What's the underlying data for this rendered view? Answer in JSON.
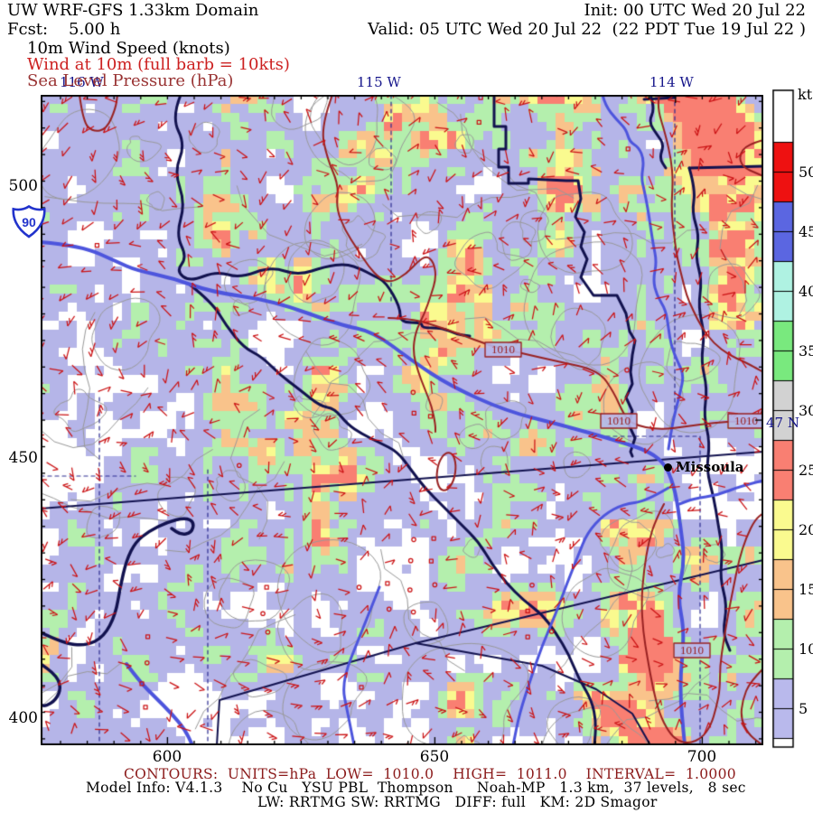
{
  "header": {
    "title_left": "UW WRF-GFS 1.33km Domain",
    "init": "Init: 00 UTC Wed 20 Jul 22",
    "fcst": "Fcst:    5.00 h",
    "valid": "Valid: 05 UTC Wed 20 Jul 22  (22 PDT Tue 19 Jul 22 )",
    "field_line1": "10m Wind Speed (knots)",
    "field_line2": "Wind at 10m (full barb = 10kts)",
    "field_line3": "Sea Level Pressure (hPa)"
  },
  "map": {
    "lon_labels": [
      "116 W",
      "115 W",
      "114 W"
    ],
    "lat_label": "47 N",
    "y_ticks": [
      "500",
      "450",
      "400"
    ],
    "x_ticks": [
      "600",
      "650",
      "700"
    ],
    "city_label": "Missoula",
    "interstate": "90",
    "contour_label": "1010"
  },
  "colorbar": {
    "unit": "kt",
    "end_color": "#ffffff",
    "levels": [
      {
        "label": "50",
        "color": "#ee1111"
      },
      {
        "label": "45",
        "color": "#5b66e1"
      },
      {
        "label": "40",
        "color": "#aff2e2"
      },
      {
        "label": "35",
        "color": "#79e97e"
      },
      {
        "label": "30",
        "color": "#d2d2d2"
      },
      {
        "label": "25",
        "color": "#f97f72"
      },
      {
        "label": "20",
        "color": "#fafa8f"
      },
      {
        "label": "15",
        "color": "#f9c38b"
      },
      {
        "label": "10",
        "color": "#b4efad"
      },
      {
        "label": "5",
        "color": "#b9b9ec"
      }
    ]
  },
  "footer": {
    "contours": "CONTOURS:  UNITS=hPa  LOW=  1010.0    HIGH=  1011.0    INTERVAL=  1.0000",
    "model_info": "Model Info: V4.1.3    No Cu   YSU PBL  Thompson     Noah-MP   1.3 km,  37 levels,   8 sec",
    "physics": "LW: RRTMG SW: RRTMG   DIFF: full   KM: 2D Smagor"
  },
  "colors": {
    "map_bg": "#b5b5e8",
    "calm_white": "#ffffff",
    "green10": "#b4efad",
    "orange15": "#f9c38b",
    "yellow20": "#fafa8f",
    "salmon25": "#f97f72",
    "barb_red": "#cb1315",
    "slp_contour": "#992222",
    "terrain_gray": "#999999",
    "boundary_navy": "#12124f",
    "county_dash": "#2a2a8f",
    "river_blue": "#4d55dd",
    "latlon_navy": "#16168b",
    "interstate_blue": "#2233cc",
    "footer_red": "#8b1a1a"
  },
  "chart_data": {
    "type": "heatmap",
    "title": "UW WRF-GFS 1.33km Domain",
    "subtitle": "10m Wind Speed (knots); Wind at 10m (full barb = 10kts); Sea Level Pressure (hPa)",
    "init_time": "00 UTC Wed 20 Jul 22",
    "valid_time": "05 UTC Wed 20 Jul 22 (22 PDT Tue 19 Jul 22)",
    "forecast_hour": 5.0,
    "units": "kt",
    "colorbar_levels": [
      5,
      10,
      15,
      20,
      25,
      30,
      35,
      40,
      45,
      50
    ],
    "colorbar_colors": [
      "#b9b9ec",
      "#b4efad",
      "#f9c38b",
      "#fafa8f",
      "#f97f72",
      "#d2d2d2",
      "#79e97e",
      "#aff2e2",
      "#5b66e1",
      "#ee1111"
    ],
    "x_axis_ticks": [
      600,
      650,
      700
    ],
    "y_axis_ticks": [
      500,
      450,
      400
    ],
    "longitude_labels": [
      "116 W",
      "115 W",
      "114 W"
    ],
    "latitude_labels": [
      "47 N"
    ],
    "slp_contours": {
      "units": "hPa",
      "low": 1010.0,
      "high": 1011.0,
      "interval": 1.0,
      "labeled_contours": [
        1010,
        1010,
        1010,
        1010
      ]
    },
    "cities": [
      {
        "name": "Missoula"
      }
    ],
    "highways": [
      "I-90"
    ],
    "legend_position": "right",
    "model": {
      "version": "V4.1.3",
      "cumulus": "No Cu",
      "pbl": "YSU PBL",
      "microphysics": "Thompson",
      "lsm": "Noah-MP",
      "resolution": "1.3 km",
      "levels": 37,
      "timestep": "8 sec",
      "lw": "RRTMG",
      "sw": "RRTMG",
      "diff": "full",
      "km": "2D Smagor"
    }
  }
}
